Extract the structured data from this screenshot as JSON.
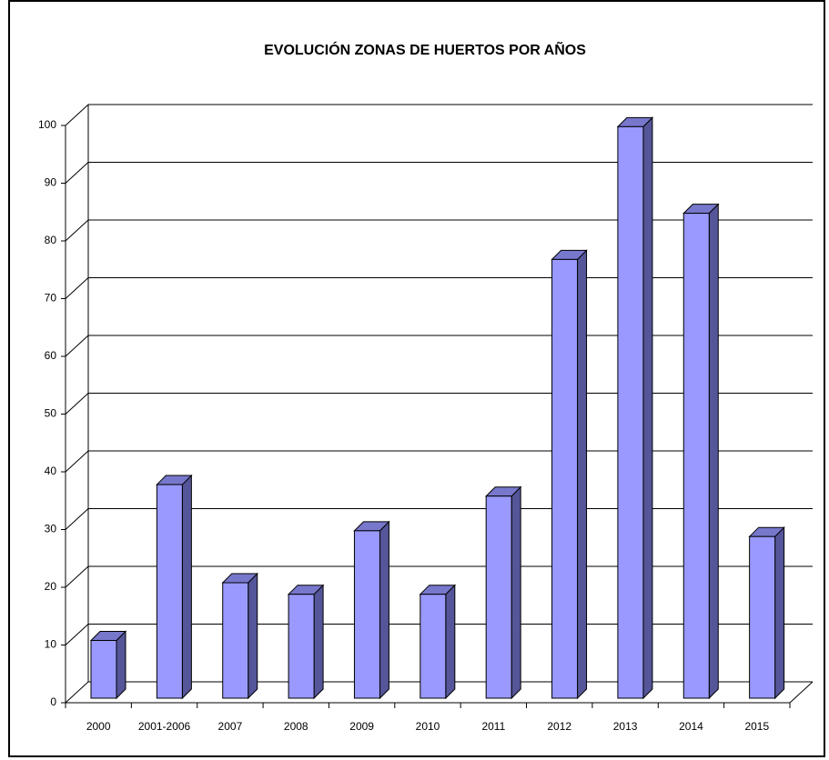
{
  "chart_data": {
    "type": "bar3d",
    "title": "EVOLUCIÓN ZONAS DE HUERTOS POR AÑOS",
    "categories": [
      "2000",
      "2001-2006",
      "2007",
      "2008",
      "2009",
      "2010",
      "2011",
      "2012",
      "2013",
      "2014",
      "2015"
    ],
    "values": [
      10,
      37,
      20,
      18,
      29,
      18,
      35,
      76,
      99,
      84,
      28
    ],
    "color": "#9999ff",
    "ylim": [
      0,
      100
    ],
    "yticks": [
      0,
      10,
      20,
      30,
      40,
      50,
      60,
      70,
      80,
      90,
      100
    ],
    "grid": true
  }
}
